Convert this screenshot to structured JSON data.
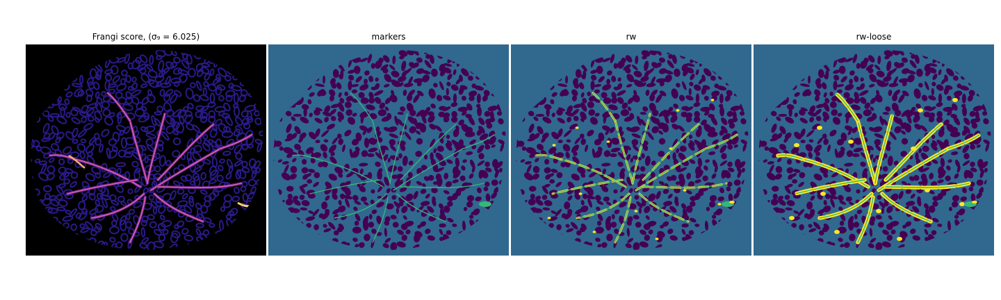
{
  "figure": {
    "panels": [
      {
        "title": "Frangi score, (σ₉ = 6.025)",
        "kind": "frangi",
        "background": "#000000",
        "mask": "#000000",
        "tissue": "#2a1a8a",
        "accent": "#e060b0"
      },
      {
        "title": "markers",
        "kind": "markers",
        "background": "#31688e",
        "mask": "#31688e",
        "tissue": "#440154",
        "accent": "#35b779"
      },
      {
        "title": "rw",
        "kind": "rw",
        "background": "#31688e",
        "mask": "#31688e",
        "tissue": "#440154",
        "accent": "#fde725"
      },
      {
        "title": "rw-loose",
        "kind": "rwloose",
        "background": "#31688e",
        "mask": "#31688e",
        "tissue": "#440154",
        "accent": "#fde725"
      }
    ]
  }
}
